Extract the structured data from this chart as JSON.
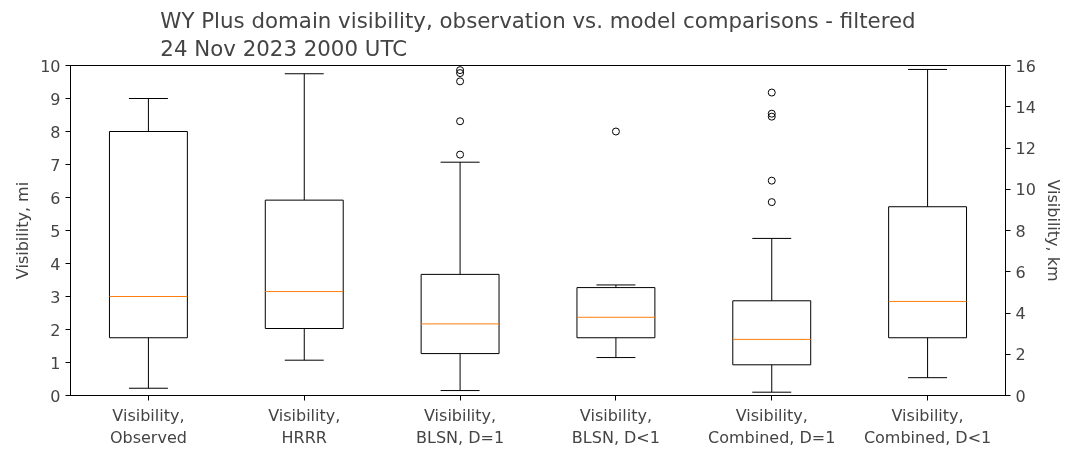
{
  "chart_data": {
    "type": "box",
    "title": "WY Plus domain visibility, observation vs. model comparisons - filtered\n24 Nov 2023 2000 UTC",
    "ylabel": "Visibility, mi",
    "y2label": "Visibility, km",
    "categories": [
      "Visibility,\nObserved",
      "Visibility,\nHRRR",
      "Visibility,\nBLSN, D=1",
      "Visibility,\nBLSN, D<1",
      "Visibility,\nCombined, D=1",
      "Visibility,\nCombined, D<1"
    ],
    "boxes": [
      {
        "low": 0.22,
        "q1": 1.75,
        "median": 3.0,
        "q3": 8.0,
        "high": 9.0
      },
      {
        "low": 1.07,
        "q1": 2.03,
        "median": 3.15,
        "q3": 5.92,
        "high": 9.75
      },
      {
        "low": 0.15,
        "q1": 1.27,
        "median": 2.17,
        "q3": 3.67,
        "high": 7.07,
        "outliers": [
          7.3,
          8.31,
          9.52,
          9.77,
          9.86
        ]
      },
      {
        "low": 1.15,
        "q1": 1.75,
        "median": 2.37,
        "q3": 3.27,
        "high": 3.35,
        "outliers": [
          8.0
        ]
      },
      {
        "low": 0.1,
        "q1": 0.93,
        "median": 1.7,
        "q3": 2.87,
        "high": 4.76,
        "outliers": [
          5.86,
          6.51,
          8.45,
          8.54,
          9.18
        ]
      },
      {
        "low": 0.54,
        "q1": 1.75,
        "median": 2.85,
        "q3": 5.72,
        "high": 9.88
      }
    ],
    "ylim": [
      0,
      10
    ],
    "yticks": [
      0,
      1,
      2,
      3,
      4,
      5,
      6,
      7,
      8,
      9,
      10
    ],
    "y2lim": [
      0,
      16
    ],
    "y2ticks": [
      0,
      2,
      4,
      6,
      8,
      10,
      12,
      14,
      16
    ],
    "grid": false
  }
}
